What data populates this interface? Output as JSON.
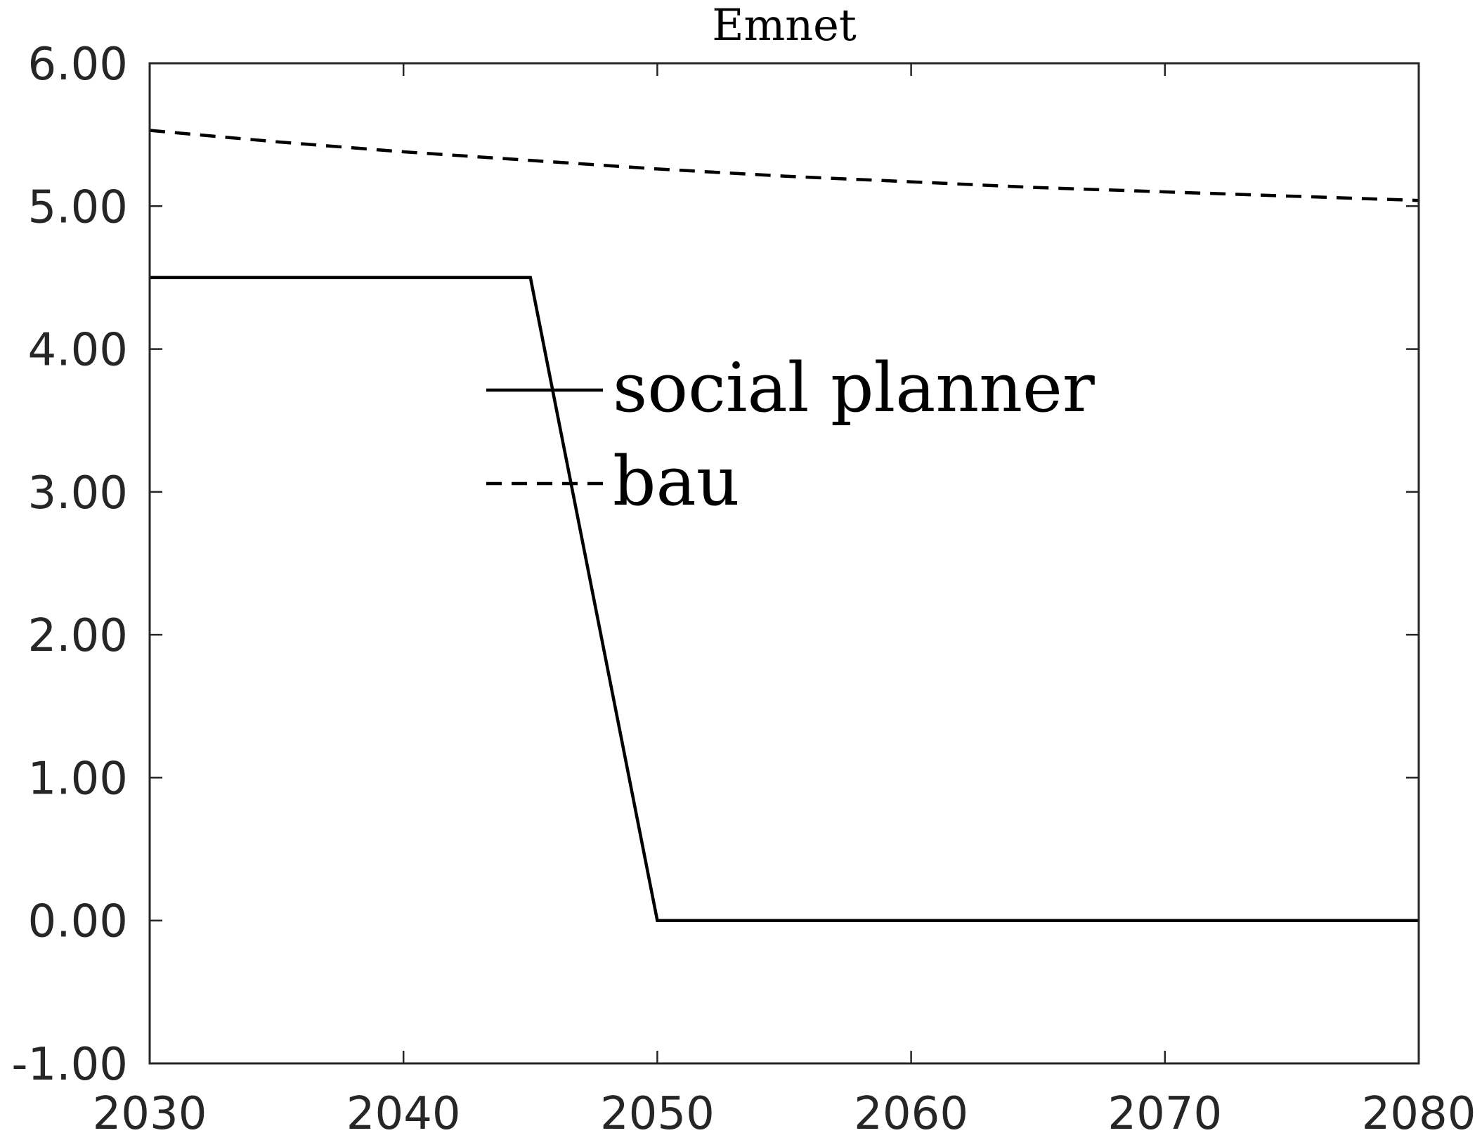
{
  "chart_data": {
    "type": "line",
    "title": "Emnet",
    "xlabel": "",
    "ylabel": "",
    "xlim": [
      2030,
      2080
    ],
    "ylim": [
      -1,
      6
    ],
    "x_ticks": [
      2030,
      2040,
      2050,
      2060,
      2070,
      2080
    ],
    "x_tick_labels": [
      "2030",
      "2040",
      "2050",
      "2060",
      "2070",
      "2080"
    ],
    "y_ticks": [
      -1,
      0,
      1,
      2,
      3,
      4,
      5,
      6
    ],
    "y_tick_labels": [
      "-1.00",
      "0.00",
      "1.00",
      "2.00",
      "3.00",
      "4.00",
      "5.00",
      "6.00"
    ],
    "grid": false,
    "legend_position": "center",
    "series": [
      {
        "name": "social planner",
        "style": "solid",
        "color": "#000000",
        "x": [
          2030,
          2045,
          2050,
          2080
        ],
        "y": [
          4.5,
          4.5,
          0.0,
          0.0
        ]
      },
      {
        "name": "bau",
        "style": "dashed",
        "color": "#000000",
        "x": [
          2030,
          2035,
          2040,
          2045,
          2050,
          2055,
          2060,
          2065,
          2070,
          2075,
          2080
        ],
        "y": [
          5.53,
          5.45,
          5.38,
          5.32,
          5.26,
          5.21,
          5.17,
          5.13,
          5.1,
          5.07,
          5.04
        ]
      }
    ]
  }
}
